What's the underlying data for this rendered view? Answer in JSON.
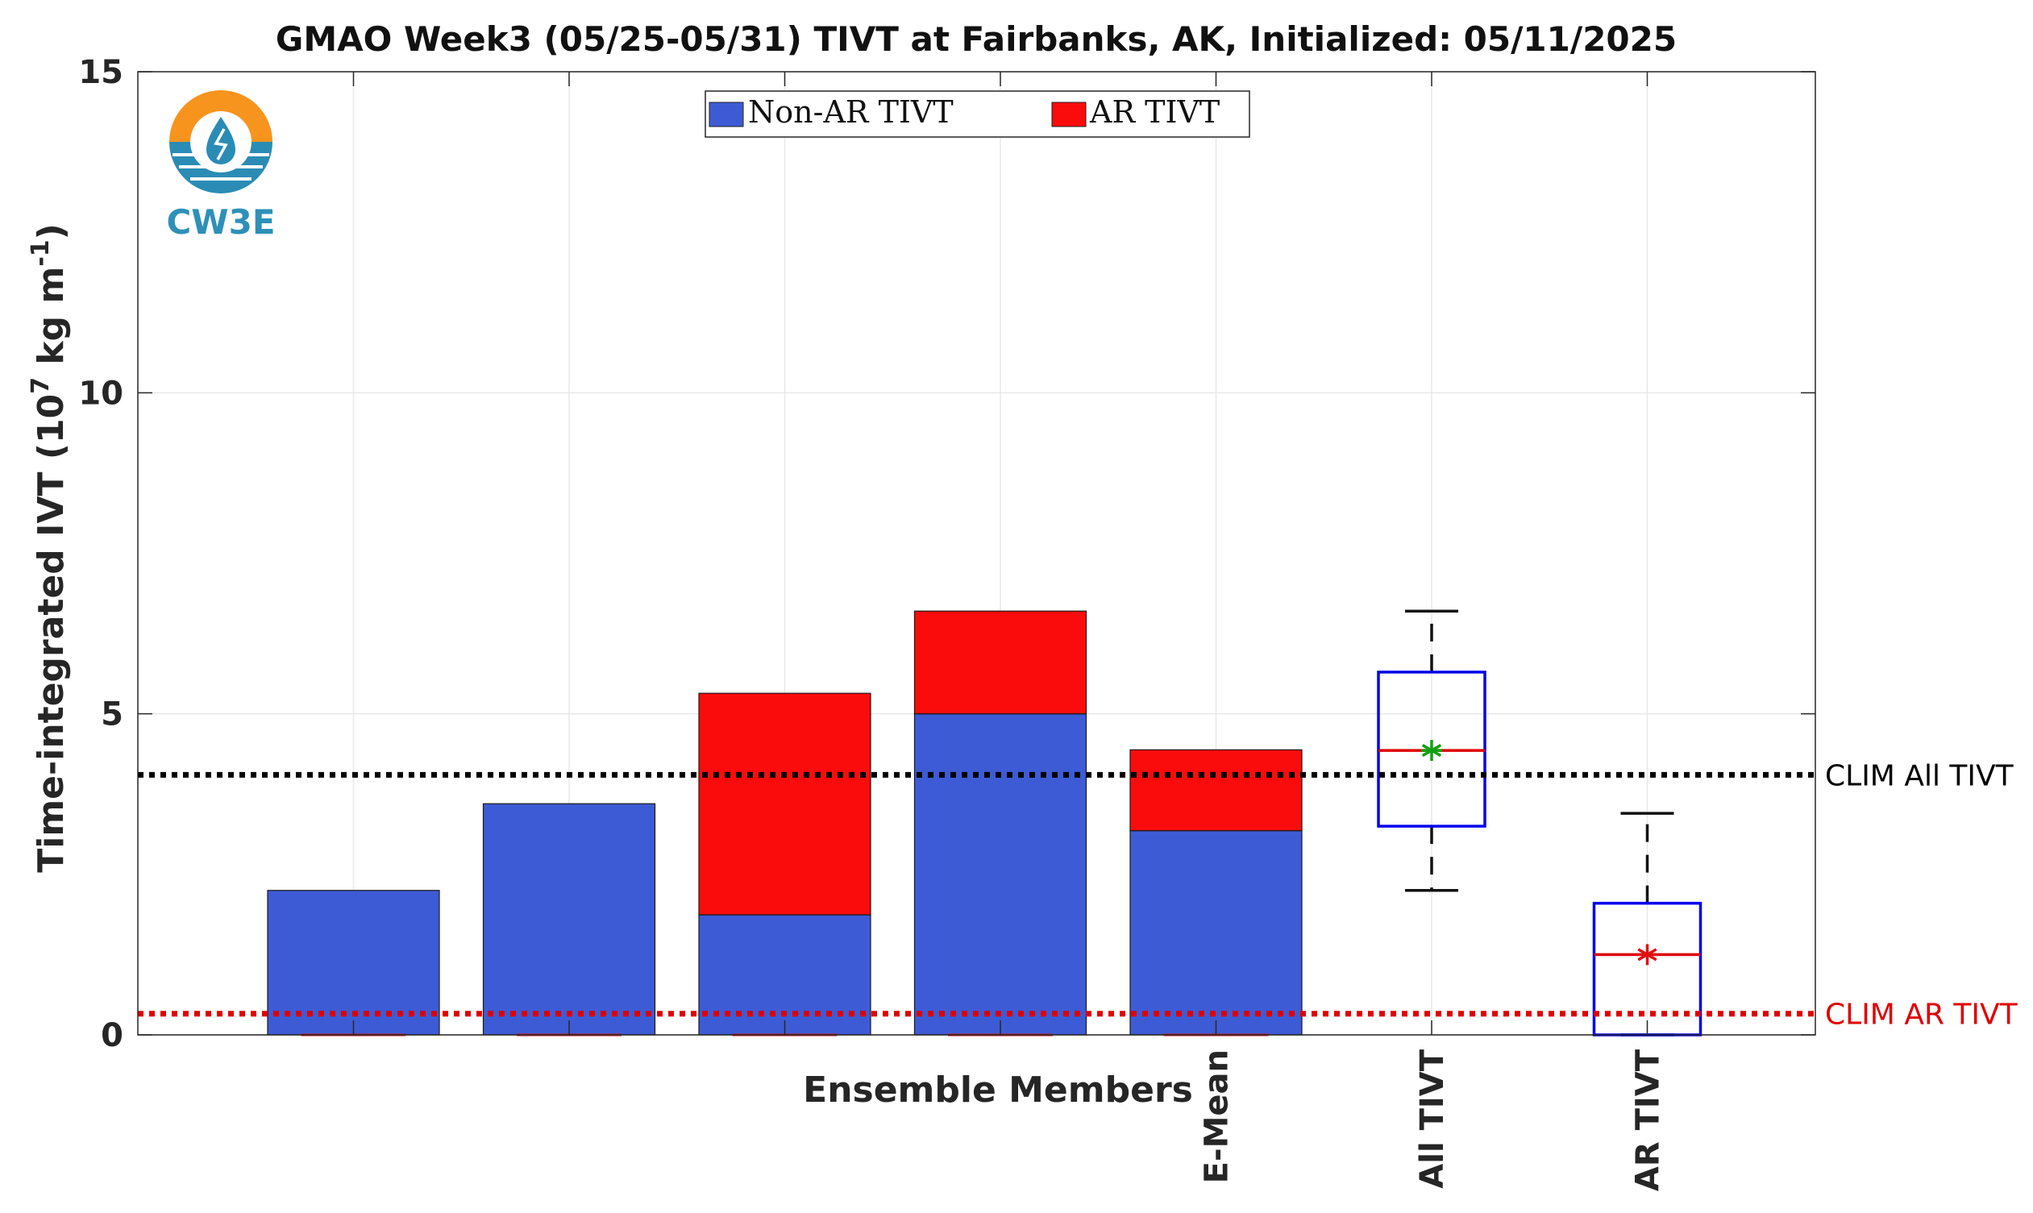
{
  "chart_data": {
    "type": "bar",
    "title": "GMAO Week3 (05/25-05/31) TIVT at Fairbanks, AK, Initialized: 05/11/2025",
    "xlabel": "Ensemble Members",
    "ylabel": "Time-integrated IVT (10",
    "ylabel_sup_1": "7",
    "ylabel_mid": " kg m",
    "ylabel_sup_2": "-1",
    "ylabel_end": ")",
    "ylim": [
      0,
      15
    ],
    "yticks": [
      "0",
      "5",
      "10",
      "15"
    ],
    "grid": true,
    "legend_position": "top-center",
    "stacked": true,
    "categories": [
      "",
      "",
      "",
      "",
      "E-Mean"
    ],
    "series": [
      {
        "name": "Non-AR TIVT",
        "color": "#3d5bd4",
        "values": [
          2.25,
          3.6,
          1.87,
          5.0,
          3.18
        ]
      },
      {
        "name": "AR TIVT",
        "color": "#fa0c0c",
        "values": [
          0,
          0,
          3.45,
          1.6,
          1.26
        ]
      }
    ],
    "boxplots": [
      {
        "label": "All TIVT",
        "min": 2.25,
        "q1": 3.25,
        "median": 4.43,
        "q3": 5.65,
        "max": 6.6,
        "mean": 4.43,
        "mean_color": "#12a012"
      },
      {
        "label": "AR TIVT",
        "min": 0,
        "q1": 0,
        "median": 1.25,
        "q3": 2.05,
        "max": 3.45,
        "mean": 1.25,
        "mean_color": "#e01010"
      }
    ],
    "reference_lines": [
      {
        "label": "CLIM All TIVT",
        "value": 4.05,
        "color": "#000000"
      },
      {
        "label": "CLIM AR TIVT",
        "value": 0.33,
        "color": "#e00000"
      }
    ]
  },
  "logo": {
    "text": "CW3E"
  }
}
